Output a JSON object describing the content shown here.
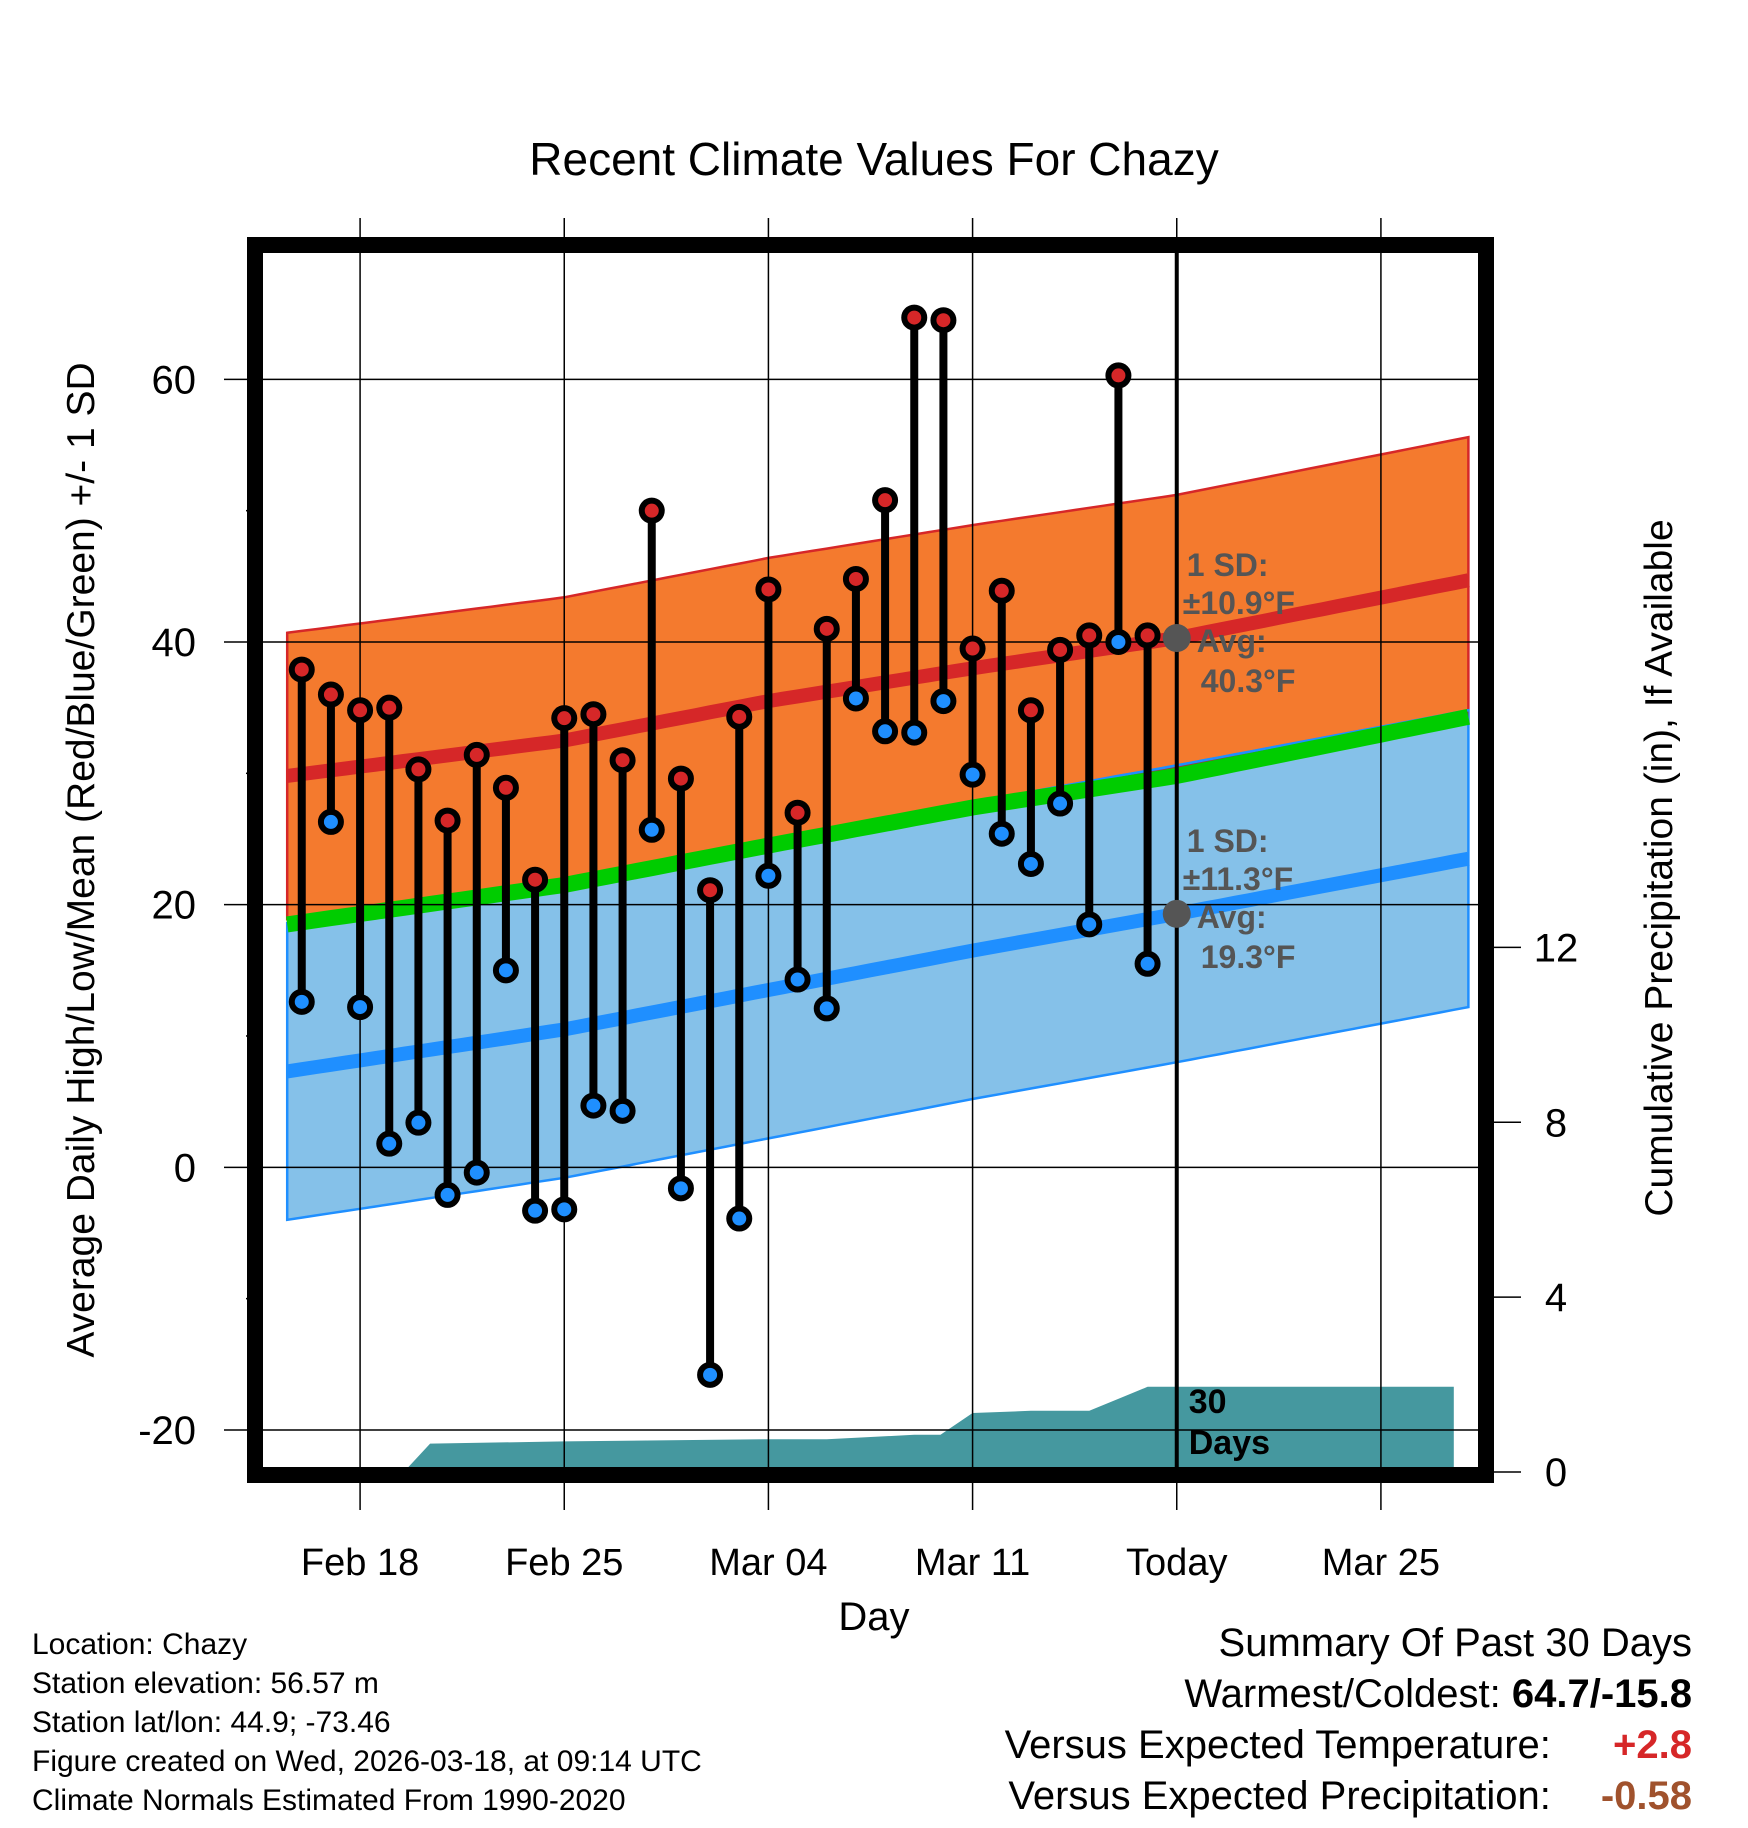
{
  "chart_data": {
    "type": "climate-range",
    "title": "Recent Climate Values For Chazy",
    "xlabel": "Day",
    "ylabel_left": "Average Daily High/Low/Mean (Red/Blue/Green) +/- 1 SD",
    "ylabel_right": "Cumulative Precipitation (in), If Available",
    "ylim": [
      -23.2,
      70
    ],
    "y_ticks": [
      -20,
      0,
      20,
      40,
      60
    ],
    "y_tick_labels": [
      "-20",
      "0",
      "20",
      "40",
      "60"
    ],
    "y2lim": [
      0,
      28
    ],
    "y2_ticks": [
      0,
      4,
      8,
      12
    ],
    "y2_tick_labels": [
      "0",
      "4",
      "8",
      "12"
    ],
    "x_range_days": [
      -31.5,
      10.5
    ],
    "x_ticks": [
      -28,
      -21,
      -14,
      -7,
      0,
      7
    ],
    "x_tick_labels": [
      "Feb 18",
      "Feb 25",
      "Mar 04",
      "Mar 11",
      "Today",
      "Mar 25"
    ],
    "normals": {
      "days": [
        -30.5,
        -21,
        -14,
        -7,
        0,
        10
      ],
      "high_mean": [
        29.8,
        32.5,
        35.5,
        38,
        40.3,
        44.7
      ],
      "high_sd": 10.9,
      "low_mean": [
        7.3,
        10.5,
        13.5,
        16.5,
        19.3,
        23.5
      ],
      "low_sd": 11.3,
      "mean_mean": [
        18.5,
        21.5,
        24.5,
        27.4,
        29.8,
        34.3
      ]
    },
    "observations": {
      "days": [
        -30,
        -29,
        -28,
        -27,
        -26,
        -25,
        -24,
        -23,
        -22,
        -21,
        -20,
        -19,
        -18,
        -17,
        -16,
        -15,
        -14,
        -13,
        -12,
        -11,
        -10,
        -9,
        -8,
        -7,
        -6,
        -5,
        -4,
        -3,
        -2,
        -1
      ],
      "high": [
        37.9,
        36.0,
        34.8,
        35.0,
        30.3,
        26.4,
        31.4,
        28.9,
        21.9,
        34.2,
        34.5,
        31.0,
        50.0,
        29.6,
        21.1,
        34.3,
        44.0,
        27.0,
        41.0,
        44.8,
        50.8,
        64.7,
        64.5,
        39.5,
        43.9,
        34.8,
        39.4,
        40.5,
        60.3,
        40.5
      ],
      "low": [
        12.6,
        26.3,
        12.2,
        1.8,
        3.4,
        -2.1,
        -0.4,
        15.0,
        -3.3,
        -3.2,
        4.7,
        4.3,
        25.7,
        -1.6,
        -15.8,
        -3.9,
        22.2,
        14.3,
        12.1,
        35.7,
        33.2,
        33.1,
        35.5,
        29.9,
        25.4,
        23.1,
        27.7,
        18.5,
        40.0,
        15.5
      ]
    },
    "precipitation": {
      "days": [
        -26.5,
        -25.6,
        -21,
        -14,
        -12,
        -9,
        -8.1,
        -7,
        -5,
        -3,
        -1,
        9.5
      ],
      "cumulative": [
        0,
        0.65,
        0.7,
        0.75,
        0.75,
        0.85,
        0.85,
        1.35,
        1.4,
        1.4,
        1.95,
        1.95
      ]
    },
    "today_markers": [
      {
        "series": "high",
        "value": 40.3,
        "sd_label": "1 SD:",
        "sd_value": "±10.9°F",
        "avg_label": "Avg:",
        "avg_value": "40.3°F"
      },
      {
        "series": "low",
        "value": 19.3,
        "sd_label": "1 SD:",
        "sd_value": "±11.3°F",
        "avg_label": "Avg:",
        "avg_value": "19.3°F"
      }
    ],
    "period_label": [
      "30",
      "Days"
    ],
    "colors": {
      "high_band": "#f47a2e",
      "high_line": "#d62728",
      "low_band": "#85c1e9",
      "low_line": "#1f8fff",
      "mean_line": "#00cc00",
      "overlap": "#a51c1c",
      "precip": "#45989f",
      "marker_high": "#d62728",
      "marker_low": "#1f8fff",
      "today_dot": "#555555"
    }
  },
  "location": {
    "line1": "Location: Chazy",
    "line2": "Station elevation: 56.57 m",
    "line3": "Station lat/lon: 44.9; -73.46",
    "line4": "Figure created on Wed, 2026-03-18, at 09:14 UTC",
    "line5": "Climate Normals Estimated From 1990-2020"
  },
  "summary": {
    "heading": "Summary Of Past 30 Days",
    "warm_cold_label": "Warmest/Coldest:",
    "warm_cold_value": "64.7/-15.8",
    "temp_label": "Versus Expected Temperature:",
    "temp_value": "+2.8",
    "temp_color": "#d62728",
    "precip_label": "Versus Expected Precipitation:",
    "precip_value": "-0.58",
    "precip_color": "#a0522d"
  }
}
